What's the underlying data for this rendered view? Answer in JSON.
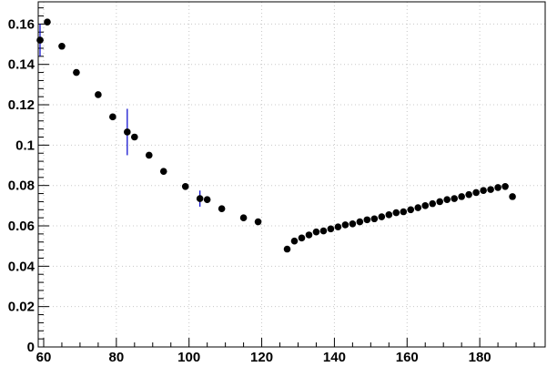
{
  "chart_data": {
    "type": "scatter",
    "title": "",
    "xlabel": "",
    "ylabel": "",
    "xlim": [
      58.5,
      198
    ],
    "ylim": [
      0,
      0.171
    ],
    "x_ticks": [
      60,
      80,
      100,
      120,
      140,
      160,
      180
    ],
    "x_tick_labels": [
      "60",
      "80",
      "100",
      "120",
      "140",
      "160",
      "180"
    ],
    "y_ticks": [
      0,
      0.02,
      0.04,
      0.06,
      0.08,
      0.1,
      0.12,
      0.14,
      0.16
    ],
    "y_tick_labels": [
      "0",
      "0.02",
      "0.04",
      "0.06",
      "0.08",
      "0.1",
      "0.12",
      "0.14",
      "0.16"
    ],
    "grid": true,
    "marker_color": "#000000",
    "error_bar_color": "#0000cc",
    "series": [
      {
        "points": [
          {
            "x": 59,
            "y": 0.152,
            "err": 0.008
          },
          {
            "x": 61,
            "y": 0.161
          },
          {
            "x": 65,
            "y": 0.149
          },
          {
            "x": 69,
            "y": 0.136
          },
          {
            "x": 75,
            "y": 0.125
          },
          {
            "x": 79,
            "y": 0.114
          },
          {
            "x": 83,
            "y": 0.1065,
            "err": 0.0115
          },
          {
            "x": 85,
            "y": 0.104
          },
          {
            "x": 89,
            "y": 0.095
          },
          {
            "x": 93,
            "y": 0.087
          },
          {
            "x": 99,
            "y": 0.0795
          },
          {
            "x": 103,
            "y": 0.0735,
            "err": 0.004
          },
          {
            "x": 105,
            "y": 0.073
          },
          {
            "x": 109,
            "y": 0.0685
          },
          {
            "x": 115,
            "y": 0.064
          },
          {
            "x": 119,
            "y": 0.062
          },
          {
            "x": 127,
            "y": 0.0485
          },
          {
            "x": 129,
            "y": 0.0525
          },
          {
            "x": 131,
            "y": 0.054
          },
          {
            "x": 133,
            "y": 0.0555
          },
          {
            "x": 135,
            "y": 0.057
          },
          {
            "x": 137,
            "y": 0.0575
          },
          {
            "x": 139,
            "y": 0.0585
          },
          {
            "x": 141,
            "y": 0.0595
          },
          {
            "x": 143,
            "y": 0.0605
          },
          {
            "x": 145,
            "y": 0.061
          },
          {
            "x": 147,
            "y": 0.062
          },
          {
            "x": 149,
            "y": 0.063
          },
          {
            "x": 151,
            "y": 0.0635
          },
          {
            "x": 153,
            "y": 0.0645
          },
          {
            "x": 155,
            "y": 0.0655
          },
          {
            "x": 157,
            "y": 0.0665
          },
          {
            "x": 159,
            "y": 0.067
          },
          {
            "x": 161,
            "y": 0.068
          },
          {
            "x": 163,
            "y": 0.069
          },
          {
            "x": 165,
            "y": 0.07
          },
          {
            "x": 167,
            "y": 0.071
          },
          {
            "x": 169,
            "y": 0.072
          },
          {
            "x": 171,
            "y": 0.073
          },
          {
            "x": 173,
            "y": 0.0735
          },
          {
            "x": 175,
            "y": 0.0745
          },
          {
            "x": 177,
            "y": 0.0755
          },
          {
            "x": 179,
            "y": 0.0765
          },
          {
            "x": 181,
            "y": 0.0775
          },
          {
            "x": 183,
            "y": 0.078
          },
          {
            "x": 185,
            "y": 0.079
          },
          {
            "x": 187,
            "y": 0.0795
          },
          {
            "x": 189,
            "y": 0.0745
          }
        ]
      }
    ]
  }
}
